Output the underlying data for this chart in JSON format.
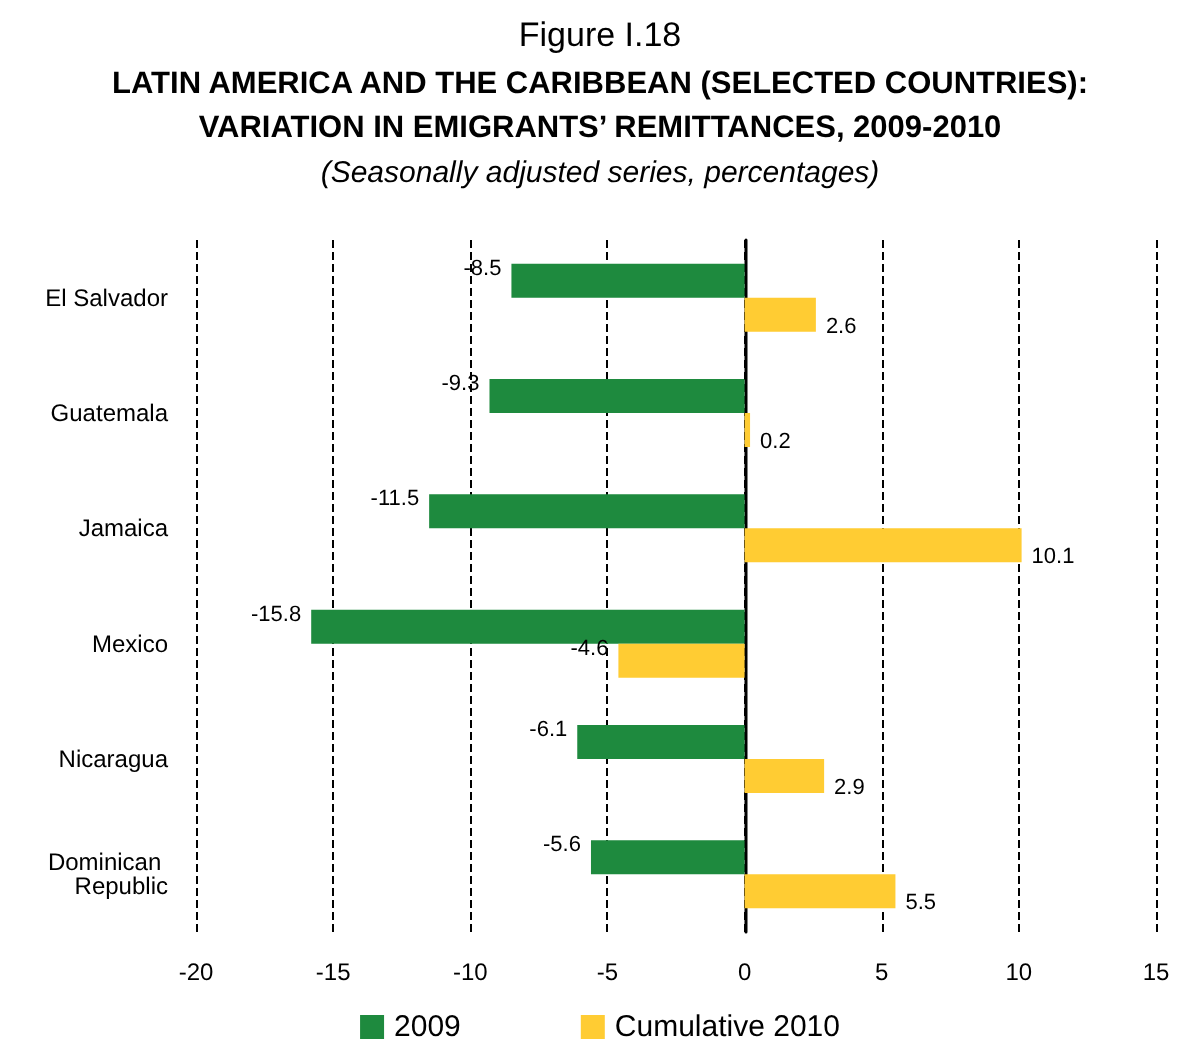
{
  "chart_data": {
    "type": "bar",
    "orientation": "horizontal",
    "title": "Figure I.18",
    "subtitle": "LATIN AMERICA AND THE CARIBBEAN (SELECTED COUNTRIES):\nVARIATION IN EMIGRANTS’ REMITTANCES, 2009-2010",
    "annotations": [
      "(Seasonally adjusted series, percentages)"
    ],
    "categories": [
      "El Salvador",
      "Guatemala",
      "Jamaica",
      "Mexico",
      "Nicaragua",
      "Dominican Republic"
    ],
    "series": [
      {
        "name": "2009",
        "color": "#1e8a3e",
        "values": [
          -8.5,
          -9.3,
          -11.5,
          -15.8,
          -6.1,
          -5.6
        ]
      },
      {
        "name": "Cumulative 2010",
        "color": "#ffcc33",
        "values": [
          2.6,
          0.2,
          10.1,
          -4.6,
          2.9,
          5.5
        ]
      }
    ],
    "xlim": [
      -20,
      15
    ],
    "xticks": [
      -20,
      -15,
      -10,
      -5,
      0,
      5,
      10,
      15
    ],
    "grid": "x",
    "legend": "bottom",
    "data_labels": true
  }
}
